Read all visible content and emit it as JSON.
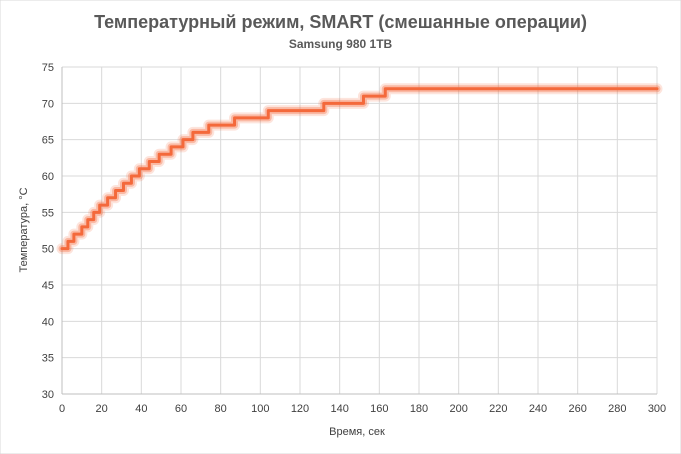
{
  "chart_data": {
    "type": "line",
    "title": "Температурный режим, SMART (смешанные операции)",
    "subtitle": "Samsung 980  1TB",
    "xlabel": "Время,  сек",
    "ylabel": "Температура, °С",
    "xlim": [
      0,
      300
    ],
    "ylim": [
      30,
      75
    ],
    "xticks": [
      0,
      20,
      40,
      60,
      80,
      100,
      120,
      140,
      160,
      180,
      200,
      220,
      240,
      260,
      280,
      300
    ],
    "yticks": [
      30,
      35,
      40,
      45,
      50,
      55,
      60,
      65,
      70,
      75
    ],
    "grid": "vertical-and-horizontal",
    "legend": "none",
    "series": [
      {
        "color": "#f4693b",
        "x": [
          0,
          3,
          6,
          10,
          13,
          16,
          19,
          23,
          27,
          31,
          35,
          39,
          44,
          49,
          55,
          61,
          66,
          74,
          87,
          104,
          132,
          152,
          163,
          183,
          233,
          300
        ],
        "y": [
          50,
          51,
          52,
          53,
          54,
          55,
          56,
          57,
          58,
          59,
          60,
          61,
          62,
          63,
          64,
          65,
          66,
          67,
          68,
          69,
          70,
          71,
          72,
          72,
          72,
          72
        ]
      }
    ]
  }
}
